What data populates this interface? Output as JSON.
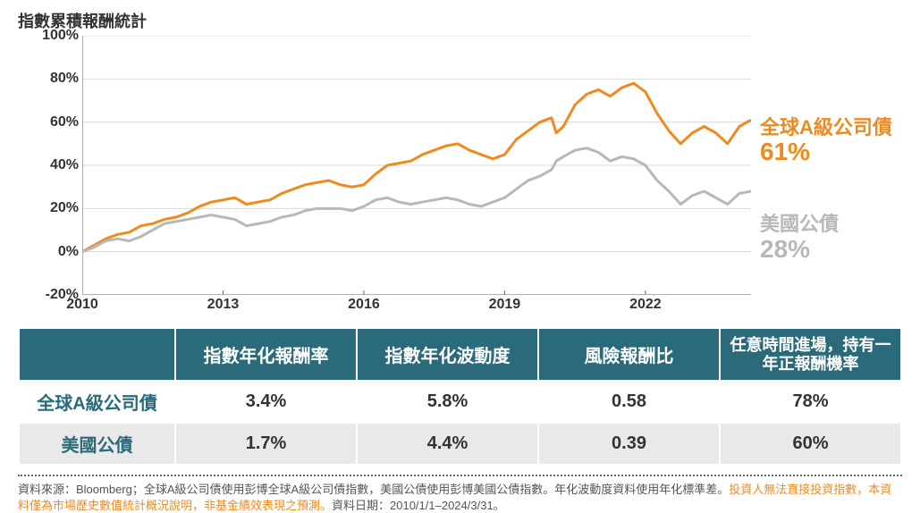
{
  "title": "指數累積報酬統計",
  "chart": {
    "type": "line",
    "x_domain": [
      2010,
      2024.25
    ],
    "y_domain": [
      -20,
      100
    ],
    "y_ticks": [
      -20,
      0,
      20,
      40,
      60,
      80,
      100
    ],
    "y_tick_labels": [
      "-20%",
      "0%",
      "20%",
      "40%",
      "60%",
      "80%",
      "100%"
    ],
    "x_ticks": [
      2010,
      2013,
      2016,
      2019,
      2022
    ],
    "x_tick_labels": [
      "2010",
      "2013",
      "2016",
      "2019",
      "2022"
    ],
    "grid_color": "#d9d9d9",
    "axis_color": "#666666",
    "background_color": "#ffffff",
    "line_width": 3,
    "series": [
      {
        "name": "全球A級公司債",
        "color": "#f08a1f",
        "end_label": "全球A級公司債",
        "end_value_label": "61%",
        "label_y_pct": 28,
        "data": [
          [
            2010.0,
            0
          ],
          [
            2010.25,
            3
          ],
          [
            2010.5,
            6
          ],
          [
            2010.75,
            8
          ],
          [
            2011.0,
            9
          ],
          [
            2011.25,
            12
          ],
          [
            2011.5,
            13
          ],
          [
            2011.75,
            15
          ],
          [
            2012.0,
            16
          ],
          [
            2012.25,
            18
          ],
          [
            2012.5,
            21
          ],
          [
            2012.75,
            23
          ],
          [
            2013.0,
            24
          ],
          [
            2013.25,
            25
          ],
          [
            2013.5,
            22
          ],
          [
            2013.75,
            23
          ],
          [
            2014.0,
            24
          ],
          [
            2014.25,
            27
          ],
          [
            2014.5,
            29
          ],
          [
            2014.75,
            31
          ],
          [
            2015.0,
            32
          ],
          [
            2015.25,
            33
          ],
          [
            2015.5,
            31
          ],
          [
            2015.75,
            30
          ],
          [
            2016.0,
            31
          ],
          [
            2016.25,
            36
          ],
          [
            2016.5,
            40
          ],
          [
            2016.75,
            41
          ],
          [
            2017.0,
            42
          ],
          [
            2017.25,
            45
          ],
          [
            2017.5,
            47
          ],
          [
            2017.75,
            49
          ],
          [
            2018.0,
            50
          ],
          [
            2018.25,
            47
          ],
          [
            2018.5,
            45
          ],
          [
            2018.75,
            43
          ],
          [
            2019.0,
            45
          ],
          [
            2019.25,
            52
          ],
          [
            2019.5,
            56
          ],
          [
            2019.75,
            60
          ],
          [
            2020.0,
            62
          ],
          [
            2020.1,
            55
          ],
          [
            2020.25,
            58
          ],
          [
            2020.5,
            68
          ],
          [
            2020.75,
            73
          ],
          [
            2021.0,
            75
          ],
          [
            2021.25,
            72
          ],
          [
            2021.5,
            76
          ],
          [
            2021.75,
            78
          ],
          [
            2022.0,
            74
          ],
          [
            2022.25,
            64
          ],
          [
            2022.5,
            56
          ],
          [
            2022.75,
            50
          ],
          [
            2023.0,
            55
          ],
          [
            2023.25,
            58
          ],
          [
            2023.5,
            55
          ],
          [
            2023.75,
            50
          ],
          [
            2024.0,
            58
          ],
          [
            2024.25,
            61
          ]
        ]
      },
      {
        "name": "美國公債",
        "color": "#b8b8b8",
        "end_label": "美國公債",
        "end_value_label": "28%",
        "label_y_pct": 62,
        "data": [
          [
            2010.0,
            0
          ],
          [
            2010.25,
            2
          ],
          [
            2010.5,
            5
          ],
          [
            2010.75,
            6
          ],
          [
            2011.0,
            5
          ],
          [
            2011.25,
            7
          ],
          [
            2011.5,
            10
          ],
          [
            2011.75,
            13
          ],
          [
            2012.0,
            14
          ],
          [
            2012.25,
            15
          ],
          [
            2012.5,
            16
          ],
          [
            2012.75,
            17
          ],
          [
            2013.0,
            16
          ],
          [
            2013.25,
            15
          ],
          [
            2013.5,
            12
          ],
          [
            2013.75,
            13
          ],
          [
            2014.0,
            14
          ],
          [
            2014.25,
            16
          ],
          [
            2014.5,
            17
          ],
          [
            2014.75,
            19
          ],
          [
            2015.0,
            20
          ],
          [
            2015.25,
            20
          ],
          [
            2015.5,
            20
          ],
          [
            2015.75,
            19
          ],
          [
            2016.0,
            21
          ],
          [
            2016.25,
            24
          ],
          [
            2016.5,
            25
          ],
          [
            2016.75,
            23
          ],
          [
            2017.0,
            22
          ],
          [
            2017.25,
            23
          ],
          [
            2017.5,
            24
          ],
          [
            2017.75,
            25
          ],
          [
            2018.0,
            24
          ],
          [
            2018.25,
            22
          ],
          [
            2018.5,
            21
          ],
          [
            2018.75,
            23
          ],
          [
            2019.0,
            25
          ],
          [
            2019.25,
            29
          ],
          [
            2019.5,
            33
          ],
          [
            2019.75,
            35
          ],
          [
            2020.0,
            38
          ],
          [
            2020.1,
            42
          ],
          [
            2020.25,
            44
          ],
          [
            2020.5,
            47
          ],
          [
            2020.75,
            48
          ],
          [
            2021.0,
            46
          ],
          [
            2021.25,
            42
          ],
          [
            2021.5,
            44
          ],
          [
            2021.75,
            43
          ],
          [
            2022.0,
            40
          ],
          [
            2022.25,
            33
          ],
          [
            2022.5,
            28
          ],
          [
            2022.75,
            22
          ],
          [
            2023.0,
            26
          ],
          [
            2023.25,
            28
          ],
          [
            2023.5,
            25
          ],
          [
            2023.75,
            22
          ],
          [
            2024.0,
            27
          ],
          [
            2024.25,
            28
          ]
        ]
      }
    ]
  },
  "table": {
    "header_bg": "#2b6a7a",
    "header_fg": "#ffffff",
    "row_colors": {
      "corp": {
        "label_fg": "#2b6a7a",
        "bg": "#ffffff"
      },
      "treasury": {
        "label_fg": "#2b6a7a",
        "bg": "#e9e9e9"
      }
    },
    "columns": [
      "",
      "指數年化報酬率",
      "指數年化波動度",
      "風險報酬比",
      "任意時間進場，持有一年正報酬機率"
    ],
    "rows": [
      {
        "key": "corp",
        "label": "全球A級公司債",
        "cells": [
          "3.4%",
          "5.8%",
          "0.58",
          "78%"
        ]
      },
      {
        "key": "treasury",
        "label": "美國公債",
        "cells": [
          "1.7%",
          "4.4%",
          "0.39",
          "60%"
        ]
      }
    ]
  },
  "disclaimer": {
    "pre": "資料來源：Bloomberg；全球A級公司債使用彭博全球A級公司債指數，美國公債使用彭博美國公債指數。年化波動度資料使用年化標準差。",
    "warn": "投資人無法直接投資指數，本資料僅為市場歷史數值統計概況說明，非基金績效表現之預測。",
    "post": "資料日期：2010/1/1–2024/3/31。"
  }
}
